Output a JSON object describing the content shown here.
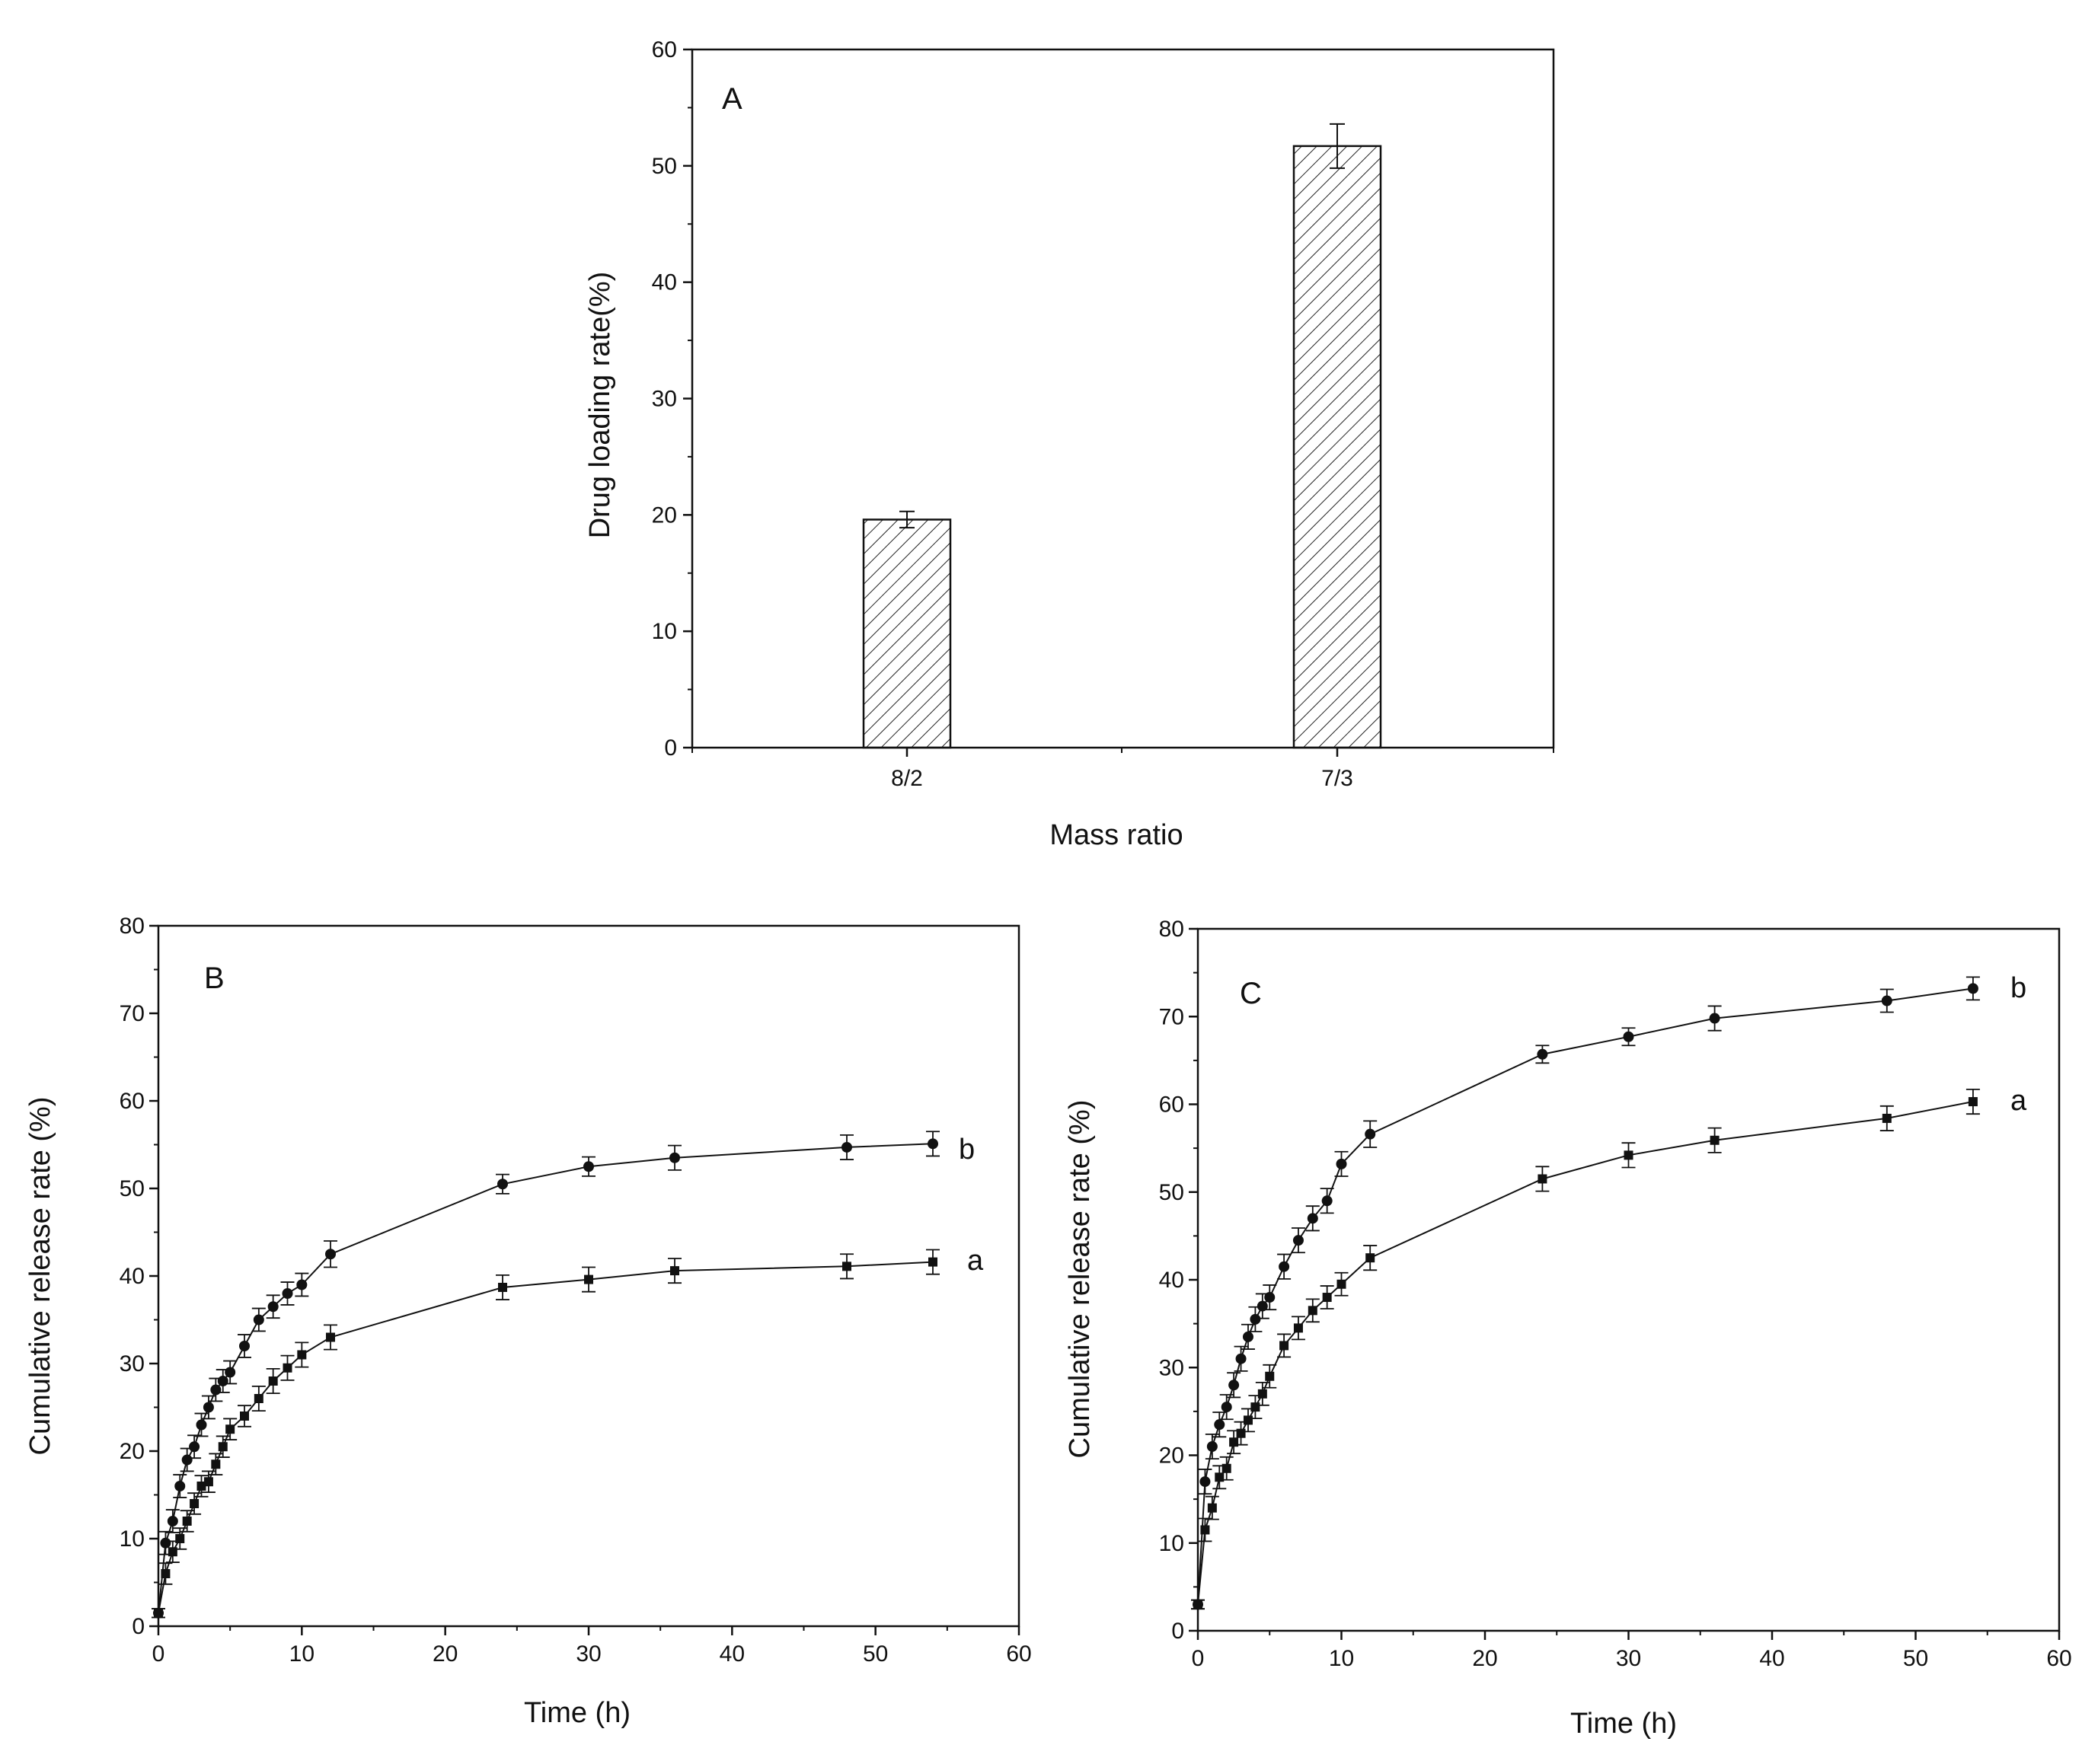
{
  "colors": {
    "ink": "#111111",
    "bar_fill": "#ffffff",
    "background": "#ffffff"
  },
  "chart_data": [
    {
      "panel": "A",
      "type": "bar",
      "title": "",
      "categories": [
        "8/2",
        "7/3"
      ],
      "values": [
        19.6,
        51.7
      ],
      "errors": [
        0.7,
        1.9
      ],
      "xlabel": "Mass ratio",
      "ylabel": "Drug loading rate(%)",
      "ylim": [
        0,
        60
      ],
      "yticks": [
        0,
        10,
        20,
        30,
        40,
        50,
        60
      ],
      "bar_pattern": "diagonal hatch"
    },
    {
      "panel": "B",
      "type": "line",
      "xlabel": "Time (h)",
      "ylabel": "Cumulative release rate (%)",
      "xlim": [
        0,
        60
      ],
      "ylim": [
        0,
        80
      ],
      "xticks": [
        0,
        10,
        20,
        30,
        40,
        50,
        60
      ],
      "yticks": [
        0,
        10,
        20,
        30,
        40,
        50,
        60,
        70,
        80
      ],
      "series": [
        {
          "name": "a",
          "marker": "square",
          "x": [
            0,
            0.5,
            1,
            1.5,
            2,
            2.5,
            3,
            3.5,
            4,
            4.5,
            5,
            6,
            7,
            8,
            9,
            10,
            12,
            24,
            30,
            36,
            48,
            54
          ],
          "y": [
            1.5,
            6,
            8.5,
            10,
            12,
            14,
            16,
            16.5,
            18.5,
            20.5,
            22.5,
            24,
            26,
            28,
            29.5,
            31,
            33,
            38.7,
            39.6,
            40.6,
            41.1,
            41.6
          ],
          "err": [
            0.5,
            1.2,
            1.2,
            1.2,
            1.2,
            1.2,
            1.2,
            1.2,
            1.2,
            1.2,
            1.2,
            1.2,
            1.4,
            1.4,
            1.4,
            1.4,
            1.4,
            1.4,
            1.4,
            1.4,
            1.4,
            1.4
          ]
        },
        {
          "name": "b",
          "marker": "circle",
          "x": [
            0,
            0.5,
            1,
            1.5,
            2,
            2.5,
            3,
            3.5,
            4,
            4.5,
            5,
            6,
            7,
            8,
            9,
            10,
            12,
            24,
            30,
            36,
            48,
            54
          ],
          "y": [
            1.5,
            9.5,
            12,
            16,
            19,
            20.5,
            23,
            25,
            27,
            28,
            29,
            32,
            35,
            36.5,
            38,
            39,
            42.5,
            50.5,
            52.5,
            53.5,
            54.7,
            55.1
          ],
          "err": [
            0.5,
            1.3,
            1.3,
            1.3,
            1.3,
            1.3,
            1.3,
            1.3,
            1.3,
            1.3,
            1.3,
            1.3,
            1.3,
            1.3,
            1.3,
            1.3,
            1.5,
            1.1,
            1.1,
            1.4,
            1.4,
            1.4
          ]
        }
      ]
    },
    {
      "panel": "C",
      "type": "line",
      "xlabel": "Time (h)",
      "ylabel": "Cumulative release rate (%)",
      "xlim": [
        0,
        60
      ],
      "ylim": [
        0,
        80
      ],
      "xticks": [
        0,
        10,
        20,
        30,
        40,
        50,
        60
      ],
      "yticks": [
        0,
        10,
        20,
        30,
        40,
        50,
        60,
        70,
        80
      ],
      "series": [
        {
          "name": "a",
          "marker": "square",
          "x": [
            0,
            0.5,
            1,
            1.5,
            2,
            2.5,
            3,
            3.5,
            4,
            4.5,
            5,
            6,
            7,
            8,
            9,
            10,
            12,
            24,
            30,
            36,
            48,
            54
          ],
          "y": [
            3,
            11.5,
            14,
            17.5,
            18.5,
            21.5,
            22.5,
            24,
            25.5,
            27,
            29,
            32.5,
            34.5,
            36.5,
            38,
            39.5,
            42.5,
            51.5,
            54.2,
            55.9,
            58.4,
            60.3
          ],
          "err": [
            0.5,
            1.3,
            1.3,
            1.3,
            1.3,
            1.3,
            1.3,
            1.3,
            1.3,
            1.3,
            1.3,
            1.3,
            1.3,
            1.3,
            1.3,
            1.3,
            1.4,
            1.4,
            1.4,
            1.4,
            1.4,
            1.4
          ]
        },
        {
          "name": "b",
          "marker": "circle",
          "x": [
            0,
            0.5,
            1,
            1.5,
            2,
            2.5,
            3,
            3.5,
            4,
            4.5,
            5,
            6,
            7,
            8,
            9,
            10,
            12,
            24,
            30,
            36,
            48,
            54
          ],
          "y": [
            3,
            17,
            21,
            23.5,
            25.5,
            28,
            31,
            33.5,
            35.5,
            37,
            38,
            41.5,
            44.5,
            47,
            49,
            53.2,
            56.6,
            65.7,
            67.7,
            69.8,
            71.8,
            73.2
          ],
          "err": [
            0.5,
            1.4,
            1.4,
            1.4,
            1.4,
            1.4,
            1.4,
            1.4,
            1.4,
            1.4,
            1.4,
            1.4,
            1.4,
            1.4,
            1.4,
            1.4,
            1.5,
            1.0,
            1.0,
            1.4,
            1.3,
            1.3
          ]
        }
      ]
    }
  ]
}
